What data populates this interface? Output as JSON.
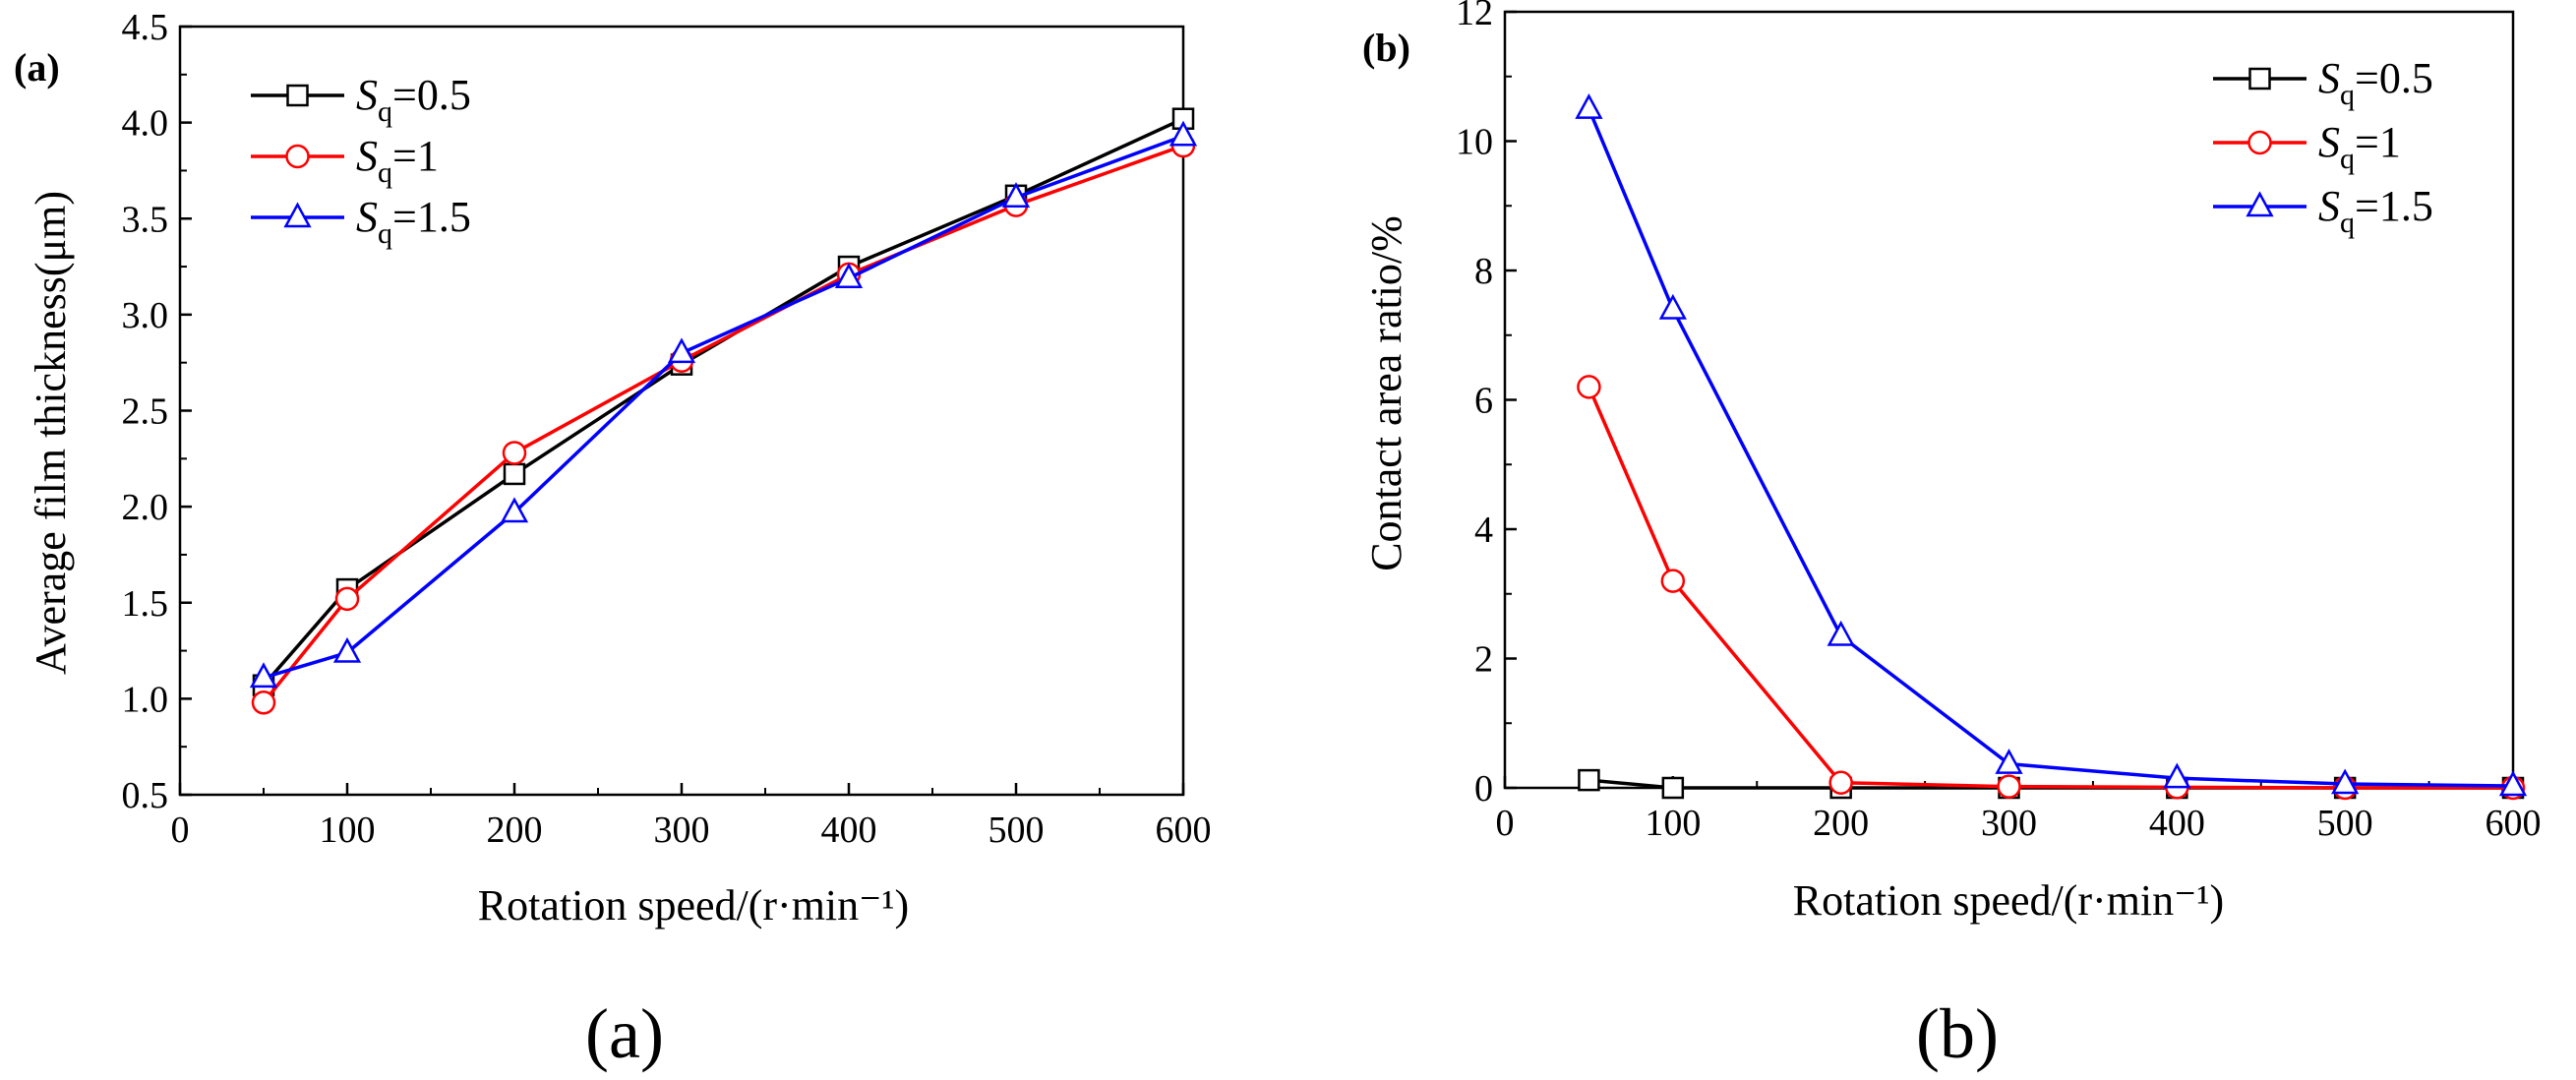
{
  "chart_data": [
    {
      "type": "line",
      "panel_label": "(a)",
      "caption": "(a)",
      "xlabel": "Rotation speed/(r·min⁻¹)",
      "ylabel": "Average film thickness(μm)",
      "xlim": [
        0,
        600
      ],
      "ylim": [
        0.5,
        4.5
      ],
      "x_ticks": [
        "0",
        "100",
        "200",
        "300",
        "400",
        "500",
        "600"
      ],
      "y_ticks": [
        "0.5",
        "1.0",
        "1.5",
        "2.0",
        "2.5",
        "3.0",
        "3.5",
        "4.0",
        "4.5"
      ],
      "grid": false,
      "legend_position": "top-left",
      "x": [
        50,
        100,
        200,
        300,
        400,
        500,
        600
      ],
      "series": [
        {
          "name": "Sq=0.5",
          "legend_main": "S",
          "legend_sub": "q",
          "legend_value": "=0.5",
          "color": "#000000",
          "marker": "square",
          "values": [
            1.07,
            1.57,
            2.17,
            2.74,
            3.25,
            3.62,
            4.02
          ]
        },
        {
          "name": "Sq=1",
          "legend_main": "S",
          "legend_sub": "q",
          "legend_value": "=1",
          "color": "#ff0000",
          "marker": "circle",
          "values": [
            0.98,
            1.52,
            2.28,
            2.76,
            3.21,
            3.57,
            3.88
          ]
        },
        {
          "name": "Sq=1.5",
          "legend_main": "S",
          "legend_sub": "q",
          "legend_value": "=1.5",
          "color": "#0000ff",
          "marker": "triangle",
          "values": [
            1.11,
            1.24,
            1.97,
            2.8,
            3.19,
            3.61,
            3.93
          ]
        }
      ]
    },
    {
      "type": "line",
      "panel_label": "(b)",
      "caption": "(b)",
      "xlabel": "Rotation speed/(r·min⁻¹)",
      "ylabel": "Contact area ratio/%",
      "xlim": [
        0,
        600
      ],
      "ylim": [
        0,
        12
      ],
      "x_ticks": [
        "0",
        "100",
        "200",
        "300",
        "400",
        "500",
        "600"
      ],
      "y_ticks": [
        "0",
        "2",
        "4",
        "6",
        "8",
        "10",
        "12"
      ],
      "grid": false,
      "legend_position": "top-right",
      "x": [
        50,
        100,
        200,
        300,
        400,
        500,
        600
      ],
      "series": [
        {
          "name": "Sq=0.5",
          "legend_main": "S",
          "legend_sub": "q",
          "legend_value": "=0.5",
          "color": "#000000",
          "marker": "square",
          "values": [
            0.12,
            0.0,
            0.0,
            0.0,
            0.0,
            0.0,
            0.0
          ]
        },
        {
          "name": "Sq=1",
          "legend_main": "S",
          "legend_sub": "q",
          "legend_value": "=1",
          "color": "#ff0000",
          "marker": "circle",
          "values": [
            6.2,
            3.2,
            0.08,
            0.02,
            0.01,
            0.0,
            0.0
          ]
        },
        {
          "name": "Sq=1.5",
          "legend_main": "S",
          "legend_sub": "q",
          "legend_value": "=1.5",
          "color": "#0000ff",
          "marker": "triangle",
          "values": [
            10.5,
            7.4,
            2.35,
            0.37,
            0.15,
            0.06,
            0.03
          ]
        }
      ]
    }
  ]
}
